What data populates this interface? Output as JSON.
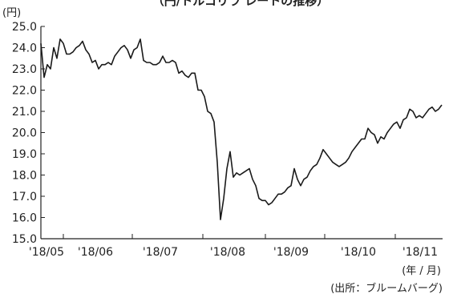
{
  "chart_data": {
    "type": "line",
    "title": "（円/トルコリラ レートの推移）",
    "unit_label": "(円)",
    "x_unit_label": "(年 / 月)",
    "source": "(出所：ブルームバーグ)",
    "ylim": [
      15.0,
      25.0
    ],
    "yticks": [
      "15.0",
      "16.0",
      "17.0",
      "18.0",
      "19.0",
      "20.0",
      "21.0",
      "22.0",
      "23.0",
      "24.0",
      "25.0"
    ],
    "xticks": [
      "'18/05",
      "'18/06",
      "'18/07",
      "'18/08",
      "'18/09",
      "'18/10",
      "'18/11"
    ],
    "series": [
      {
        "values": [
          24.2,
          22.6,
          23.2,
          23.0,
          24.0,
          23.5,
          24.4,
          24.2,
          23.7,
          23.7,
          23.8,
          24.0,
          24.1,
          24.3,
          23.9,
          23.7,
          23.3,
          23.4,
          23.0,
          23.2,
          23.2,
          23.3,
          23.2,
          23.6,
          23.8,
          24.0,
          24.1,
          23.9,
          23.5,
          23.9,
          24.0,
          24.4,
          23.4,
          23.3,
          23.3,
          23.2,
          23.2,
          23.3,
          23.6,
          23.3,
          23.3,
          23.4,
          23.3,
          22.8,
          22.9,
          22.7,
          22.6,
          22.8,
          22.8,
          22.0,
          22.0,
          21.7,
          21.0,
          20.9,
          20.5,
          18.6,
          15.9,
          16.9,
          18.3,
          19.1,
          17.9,
          18.1,
          18.0,
          18.1,
          18.2,
          18.3,
          17.8,
          17.5,
          16.9,
          16.8,
          16.8,
          16.6,
          16.7,
          16.9,
          17.1,
          17.1,
          17.2,
          17.4,
          17.5,
          18.3,
          17.8,
          17.5,
          17.8,
          17.9,
          18.2,
          18.4,
          18.5,
          18.8,
          19.2,
          19.0,
          18.8,
          18.6,
          18.5,
          18.4,
          18.5,
          18.6,
          18.8,
          19.1,
          19.3,
          19.5,
          19.7,
          19.7,
          20.2,
          20.0,
          19.9,
          19.5,
          19.8,
          19.7,
          20.0,
          20.2,
          20.4,
          20.5,
          20.2,
          20.6,
          20.7,
          21.1,
          21.0,
          20.7,
          20.8,
          20.7,
          20.9,
          21.1,
          21.2,
          21.0,
          21.1,
          21.3
        ]
      }
    ]
  }
}
